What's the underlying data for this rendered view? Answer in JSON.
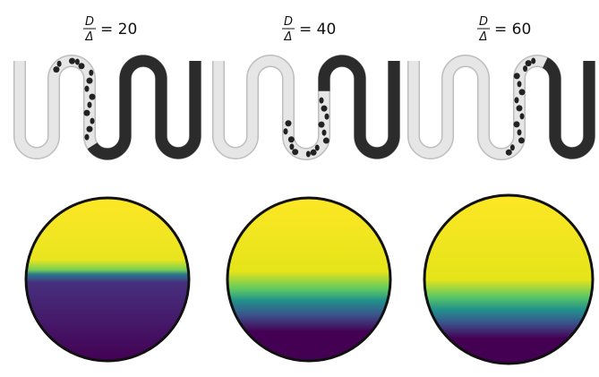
{
  "panels": [
    {
      "numerator": "D",
      "denominator": "Δ",
      "equation": "= 20"
    },
    {
      "numerator": "D",
      "denominator": "Δ",
      "equation": "= 40"
    },
    {
      "numerator": "D",
      "denominator": "Δ",
      "equation": "= 60"
    }
  ]
}
